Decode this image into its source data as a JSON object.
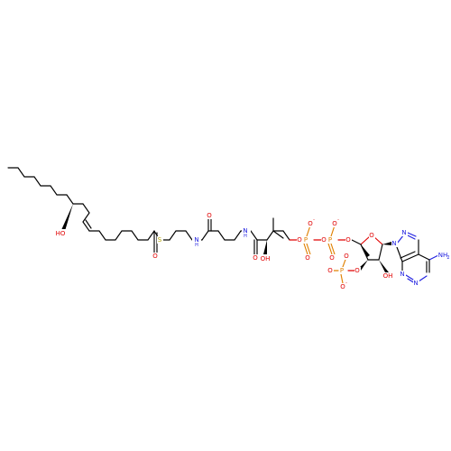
{
  "molecule": {
    "atom_labels": {
      "hydroxyl_chain": "HO",
      "thioester_s": "S",
      "thioester_o": "O",
      "amide1_nh": "N",
      "amide1_h": "H",
      "amide1_o": "O",
      "amide2_nh": "N",
      "amide2_h": "H",
      "amide2_o": "O",
      "pantoate_oh": "OH",
      "bridge_o1": "O",
      "p1": "P",
      "p1_o_top": "O",
      "p1_o_bottom": "O",
      "bridge_o2": "O",
      "p2": "P",
      "p2_o_top": "O",
      "p2_o_bottom": "O",
      "bridge_o3": "O",
      "ring_o": "O",
      "p3_o_link": "O",
      "p3": "P",
      "p3_o_top": "O",
      "p3_o_left": "O",
      "p3_o_bottom": "O",
      "ribose_oh": "OH",
      "purine_n9": "N",
      "purine_n7": "N",
      "purine_n3": "N",
      "purine_n1": "N",
      "amine": "NH",
      "amine_sub": "2"
    },
    "charges": {
      "minus": "-"
    }
  }
}
